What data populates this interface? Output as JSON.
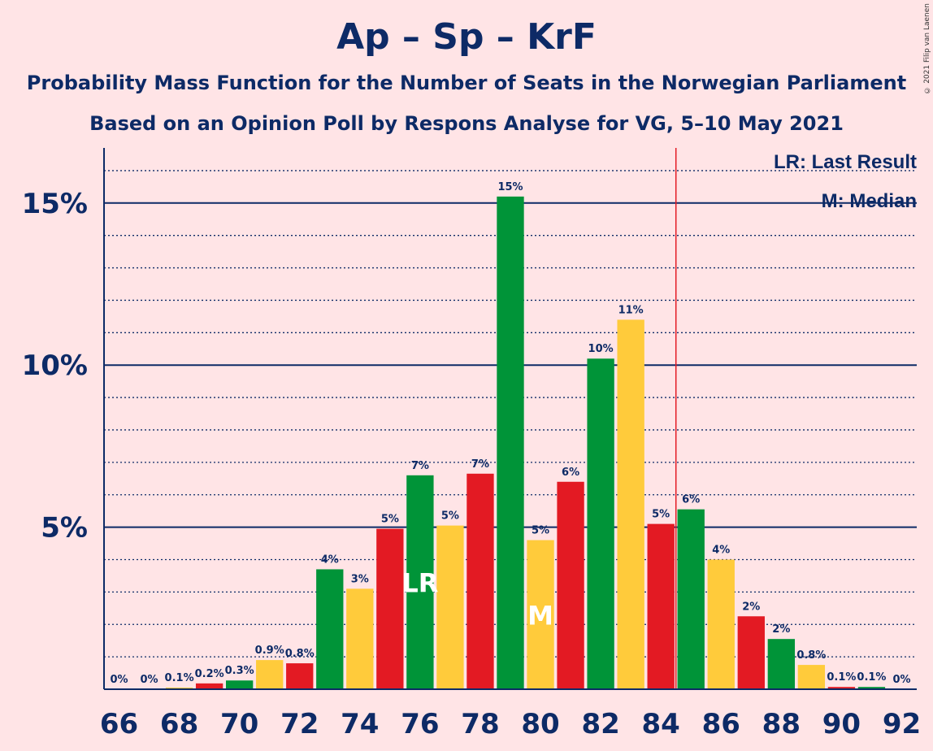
{
  "chart_data": {
    "type": "bar",
    "title": "Ap – Sp – KrF",
    "subtitle_1": "Probability Mass Function for the Number of Seats in the Norwegian Parliament",
    "subtitle_2": "Based on an Opinion Poll by Respons Analyse for VG, 5–10 May 2021",
    "copyright": "© 2021 Filip van Laenen",
    "legend": {
      "last_result": "LR: Last Result",
      "median": "M: Median"
    },
    "x": [
      66,
      67,
      68,
      69,
      70,
      71,
      72,
      73,
      74,
      75,
      76,
      77,
      78,
      79,
      80,
      81,
      82,
      83,
      84,
      85,
      86,
      87,
      88,
      89,
      90,
      91,
      92
    ],
    "values": [
      0,
      0,
      0.05,
      0.18,
      0.27,
      0.9,
      0.8,
      3.7,
      3.1,
      4.95,
      6.6,
      5.05,
      6.65,
      15.2,
      4.6,
      6.4,
      10.2,
      11.4,
      5.1,
      5.55,
      4.0,
      2.25,
      1.55,
      0.75,
      0.07,
      0.07,
      0
    ],
    "labels": [
      "0%",
      "0%",
      "0.1%",
      "0.2%",
      "0.3%",
      "0.9%",
      "0.8%",
      "4%",
      "3%",
      "5%",
      "7%",
      "5%",
      "7%",
      "15%",
      "5%",
      "6%",
      "10%",
      "11%",
      "5%",
      "6%",
      "4%",
      "2%",
      "2%",
      "0.8%",
      "0.1%",
      "0.1%",
      "0%"
    ],
    "colors": [
      "#e31a23",
      "#009438",
      "#ffcb3b"
    ],
    "ylim": [
      0,
      16.7
    ],
    "yticks": [
      5,
      10,
      15
    ],
    "ytick_labels": [
      "5%",
      "10%",
      "15%"
    ],
    "xtick_values": [
      66,
      68,
      70,
      72,
      74,
      76,
      78,
      80,
      82,
      84,
      86,
      88,
      90,
      92
    ],
    "last_result_seat": 76,
    "last_result_mark": "LR",
    "median_seat": 80,
    "median_mark": "M",
    "majority_line_after": 84,
    "majority_color": "#e31a23",
    "axis_color": "#0d2a66"
  }
}
